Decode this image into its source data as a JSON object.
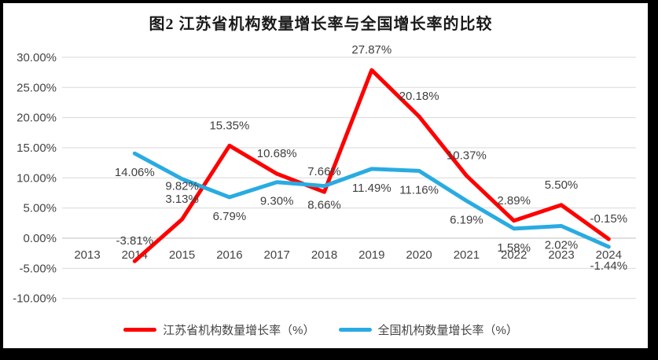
{
  "chart_data": {
    "type": "line",
    "title": "图2  江苏省机构数量增长率与全国增长率的比较",
    "categories": [
      "2013",
      "2014",
      "2015",
      "2016",
      "2017",
      "2018",
      "2019",
      "2020",
      "2021",
      "2022",
      "2023",
      "2024"
    ],
    "y_axis_ticks": [
      {
        "label": "30.00%",
        "value": 30
      },
      {
        "label": "25.00%",
        "value": 25
      },
      {
        "label": "20.00%",
        "value": 20
      },
      {
        "label": "15.00%",
        "value": 15
      },
      {
        "label": "10.00%",
        "value": 10
      },
      {
        "label": "5.00%",
        "value": 5
      },
      {
        "label": "0.00%",
        "value": 0
      },
      {
        "label": "-5.00%",
        "value": -5
      },
      {
        "label": "-10.00%",
        "value": -10
      }
    ],
    "ylim": [
      -10,
      30
    ],
    "grid": true,
    "legend_position": "bottom",
    "series": [
      {
        "name": "江苏省机构数量增长率（%）",
        "color": "#FE0000",
        "label_position": "above",
        "values": [
          null,
          -3.81,
          3.13,
          15.35,
          10.68,
          7.66,
          27.87,
          20.18,
          10.37,
          2.89,
          5.5,
          -0.15
        ],
        "labels": [
          null,
          "-3.81%",
          "3.13%",
          "15.35%",
          "10.68%",
          "7.66%",
          "27.87%",
          "20.18%",
          "10.37%",
          "2.89%",
          "5.50%",
          "-0.15%"
        ]
      },
      {
        "name": "全国机构数量增长率（%）",
        "color": "#29ABE2",
        "label_position": "below",
        "values": [
          null,
          14.06,
          9.82,
          6.79,
          9.3,
          8.66,
          11.49,
          11.16,
          6.19,
          1.58,
          2.02,
          -1.44
        ],
        "labels": [
          null,
          "14.06%",
          "9.82%",
          "6.79%",
          "9.30%",
          "8.66%",
          "11.49%",
          "11.16%",
          "6.19%",
          "1.58%",
          "2.02%",
          "-1.44%"
        ]
      }
    ],
    "colors": {
      "gridline": "#D9D9D9",
      "axis_line": "#BFBFBF",
      "tick_text": "#444444",
      "label_text": "#3f3f3f"
    }
  }
}
